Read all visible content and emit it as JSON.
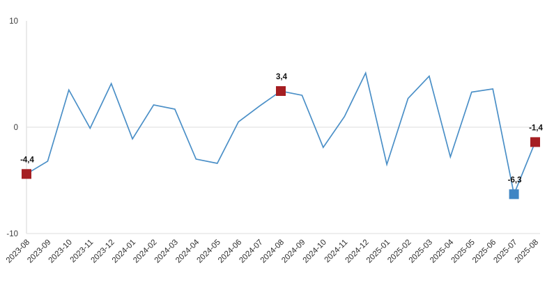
{
  "chart_data": {
    "type": "line",
    "title": "",
    "xlabel": "",
    "ylabel": "",
    "categories": [
      "2023-08",
      "2023-09",
      "2023-10",
      "2023-11",
      "2023-12",
      "2024-01",
      "2024-02",
      "2024-03",
      "2024-04",
      "2024-05",
      "2024-06",
      "2024-07",
      "2024-08",
      "2024-09",
      "2024-10",
      "2024-11",
      "2024-12",
      "2025-01",
      "2025-02",
      "2025-03",
      "2025-04",
      "2025-05",
      "2025-06",
      "2025-07",
      "2025-08"
    ],
    "values": [
      -4.4,
      -3.2,
      3.5,
      -0.1,
      4.1,
      -1.1,
      2.1,
      1.7,
      -3.0,
      -3.4,
      0.5,
      2.0,
      3.4,
      3.0,
      -1.9,
      1.0,
      5.1,
      -3.5,
      2.7,
      4.8,
      -2.8,
      3.3,
      3.6,
      -6.3,
      -1.4
    ],
    "ylim": [
      -10,
      10
    ],
    "yticks": [
      {
        "value": 10,
        "label": "10"
      },
      {
        "value": 0,
        "label": "0"
      },
      {
        "value": -10,
        "label": "-10"
      }
    ],
    "decimal_style": "comma",
    "legend": "none",
    "grid": "horizontal gridline at 0, bottom border at -10, left axis line",
    "annotated_points": [
      {
        "category": "2023-08",
        "index": 0,
        "value": -4.4,
        "label": "-4,4",
        "marker": "square",
        "marker_color": "#a51e22"
      },
      {
        "category": "2024-08",
        "index": 12,
        "value": 3.4,
        "label": "3,4",
        "marker": "square",
        "marker_color": "#a51e22"
      },
      {
        "category": "2025-07",
        "index": 23,
        "value": -6.3,
        "label": "-6,3",
        "marker": "square",
        "marker_color": "#3f85c4"
      },
      {
        "category": "2025-08",
        "index": 24,
        "value": -1.4,
        "label": "-1,4",
        "marker": "square",
        "marker_color": "#a51e22"
      }
    ],
    "colors": {
      "line": "#4a8fc7",
      "grid": "#e3e3e3",
      "axis": "#e3e3e3",
      "tick_text": "#333333",
      "value_label_text": "#111111",
      "background": "#ffffff"
    }
  }
}
